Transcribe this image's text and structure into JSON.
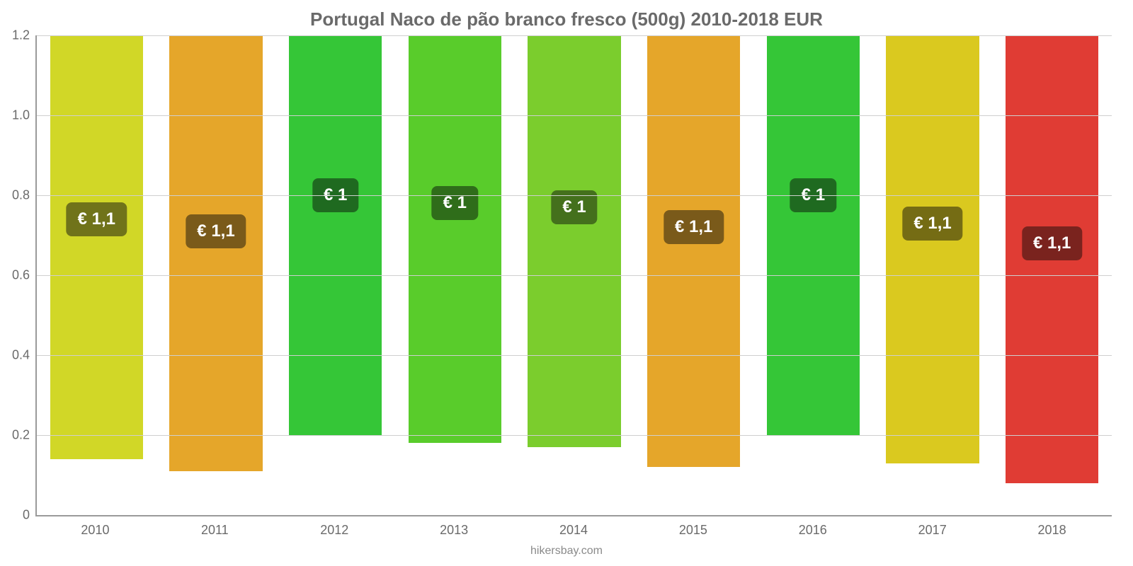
{
  "chart": {
    "type": "bar",
    "title": "Portugal Naco de pão branco fresco (500g) 2010-2018 EUR",
    "title_fontsize": 26,
    "title_color": "#6a6a6a",
    "categories": [
      "2010",
      "2011",
      "2012",
      "2013",
      "2014",
      "2015",
      "2016",
      "2017",
      "2018"
    ],
    "values": [
      1.06,
      1.09,
      1.0,
      1.02,
      1.03,
      1.08,
      1.0,
      1.07,
      1.12
    ],
    "bar_colors": [
      "#d1d727",
      "#e5a62a",
      "#35c637",
      "#59cc2b",
      "#7bcd2d",
      "#e5a62a",
      "#35c637",
      "#dac91f",
      "#e03c34"
    ],
    "value_labels": [
      "€ 1,1",
      "€ 1,1",
      "€ 1",
      "€ 1",
      "€ 1",
      "€ 1,1",
      "€ 1",
      "€ 1,1",
      "€ 1,1"
    ],
    "value_label_fontsize": 24,
    "value_label_bg": [
      "#70731a",
      "#7a5a1a",
      "#1f6a20",
      "#2f6d1a",
      "#44701c",
      "#7a5a1a",
      "#1f6a20",
      "#756c14",
      "#7a231e"
    ],
    "ylim": [
      0,
      1.2
    ],
    "ytick_step": 0.2,
    "ytick_labels": [
      "0",
      "0.2",
      "0.4",
      "0.6",
      "0.8",
      "1.0",
      "1.2"
    ],
    "ytick_fontsize": 18,
    "ytick_color": "#6a6a6a",
    "xlabel_fontsize": 18,
    "xlabel_color": "#6a6a6a",
    "axis_color": "#9a9a9a",
    "grid_color": "#cfcfcf",
    "background_color": "#ffffff",
    "bar_width_pct": 78,
    "label_pos_value": 0.6,
    "watermark": "hikersbay.com",
    "watermark_fontsize": 16,
    "watermark_color": "#8a8a8a"
  }
}
